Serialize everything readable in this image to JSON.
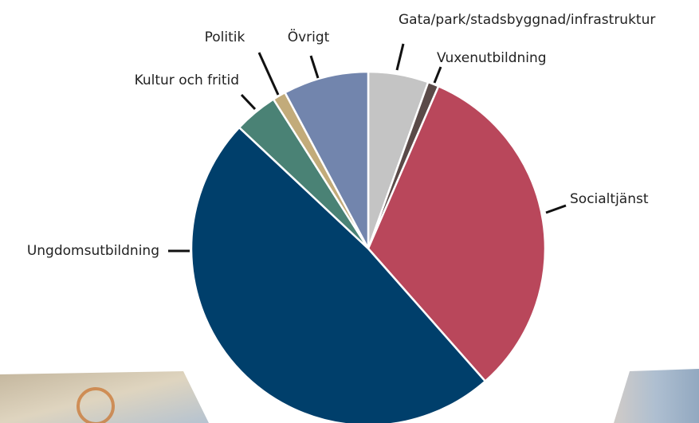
{
  "chart_data": {
    "type": "pie",
    "categories": [
      "Gata/park/stadsbyggnad/infrastruktur",
      "Vuxenutbildning",
      "Socialtjänst",
      "Ungdomsutbildning",
      "Kultur och fritid",
      "Politik",
      "Övrigt"
    ],
    "values": [
      5.5,
      1,
      32,
      48.5,
      4,
      1.2,
      7.8
    ],
    "colors": [
      "#c4c4c4",
      "#5a4a48",
      "#b9475b",
      "#003f6b",
      "#4a8275",
      "#c2ab7a",
      "#7285ad"
    ]
  }
}
